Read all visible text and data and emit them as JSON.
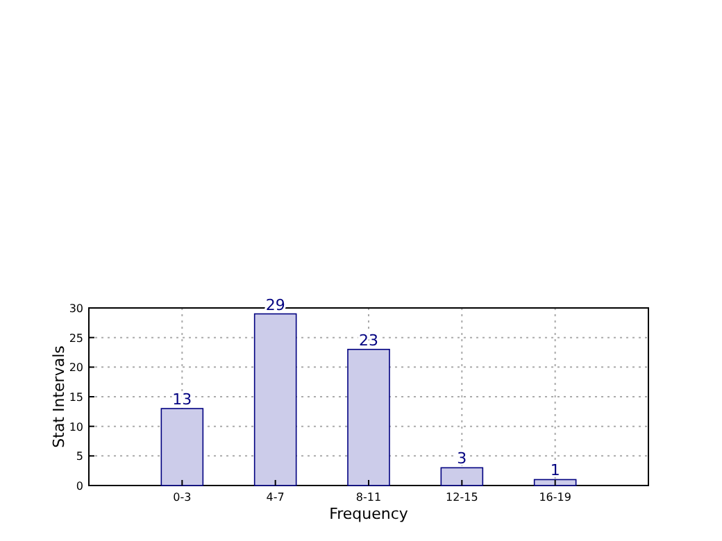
{
  "chart_data": {
    "type": "bar",
    "xlabel": "Frequency",
    "ylabel": "Stat Intervals",
    "categories": [
      "0-3",
      "4-7",
      "8-11",
      "12-15",
      "16-19"
    ],
    "values": [
      13,
      29,
      23,
      3,
      1
    ],
    "color": "#ccccea",
    "ylim": [
      0,
      30
    ],
    "yticks": [
      0,
      5,
      10,
      15,
      20,
      25,
      30
    ],
    "grid": true,
    "data_labels": true
  }
}
